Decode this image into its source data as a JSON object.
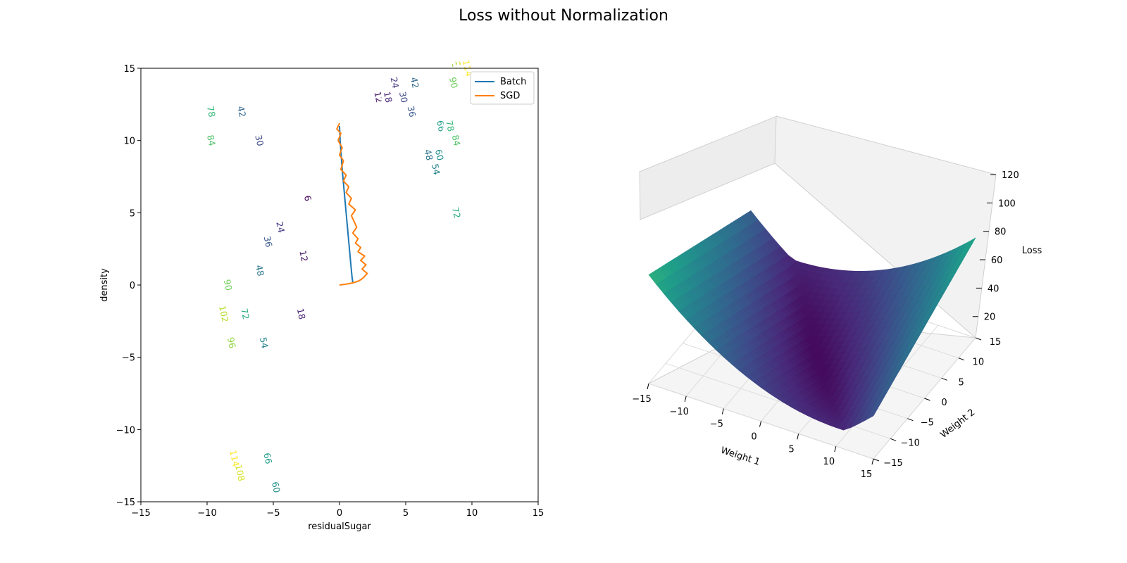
{
  "figure": {
    "title": "Loss without Normalization"
  },
  "chart_data": [
    {
      "type": "contour",
      "xlabel": "residualSugar",
      "ylabel": "density",
      "xlim": [
        -15,
        15
      ],
      "ylim": [
        -15,
        15
      ],
      "xticks": [
        -15,
        -10,
        -5,
        0,
        5,
        10,
        15
      ],
      "yticks": [
        -15,
        -10,
        -5,
        0,
        5,
        10,
        15
      ],
      "contour_levels": [
        6,
        12,
        18,
        24,
        30,
        36,
        42,
        48,
        54,
        60,
        66,
        72,
        78,
        84,
        90,
        96,
        102,
        108,
        114
      ],
      "minimum": [
        1.0,
        0.3
      ],
      "colormap": "viridis",
      "legend": {
        "placement": "top-right",
        "entries": [
          "Batch",
          "SGD"
        ]
      },
      "series": [
        {
          "name": "Batch",
          "color": "#1f77b4",
          "x": [
            0.0,
            0.05,
            0.2,
            0.35,
            0.5,
            0.65,
            0.8,
            0.9,
            0.95,
            1.0
          ],
          "y": [
            11.0,
            10.0,
            8.0,
            6.5,
            5.0,
            3.5,
            2.0,
            1.0,
            0.5,
            0.2
          ]
        },
        {
          "name": "SGD",
          "color": "#ff7f0e",
          "x": [
            0.0,
            -0.2,
            0.1,
            -0.1,
            0.2,
            0.0,
            0.3,
            0.1,
            0.5,
            0.3,
            0.7,
            0.5,
            0.9,
            0.7,
            1.2,
            0.9,
            1.1,
            1.3,
            1.0,
            1.4,
            1.2,
            1.6,
            1.4,
            1.9,
            1.6,
            2.0,
            1.7,
            2.1,
            1.8,
            1.5,
            1.2,
            0.8,
            0.4,
            0.0
          ],
          "y": [
            11.2,
            10.8,
            10.5,
            10.0,
            9.5,
            9.0,
            8.6,
            8.0,
            7.6,
            7.2,
            6.8,
            6.4,
            6.0,
            5.6,
            5.2,
            4.8,
            4.4,
            4.0,
            3.6,
            3.2,
            2.9,
            2.6,
            2.3,
            2.0,
            1.7,
            1.4,
            1.1,
            0.8,
            0.5,
            0.3,
            0.2,
            0.1,
            0.05,
            0.0
          ]
        }
      ]
    },
    {
      "type": "surface3d",
      "xlabel": "Weight 1",
      "ylabel": "Weight 2",
      "zlabel": "Loss",
      "xticks": [
        -15,
        -10,
        -5,
        0,
        5,
        10,
        15
      ],
      "yticks": [
        -15,
        -10,
        -5,
        0,
        5,
        10,
        15
      ],
      "zticks": [
        20,
        40,
        60,
        80,
        100,
        120
      ],
      "colormap": "viridis"
    }
  ]
}
